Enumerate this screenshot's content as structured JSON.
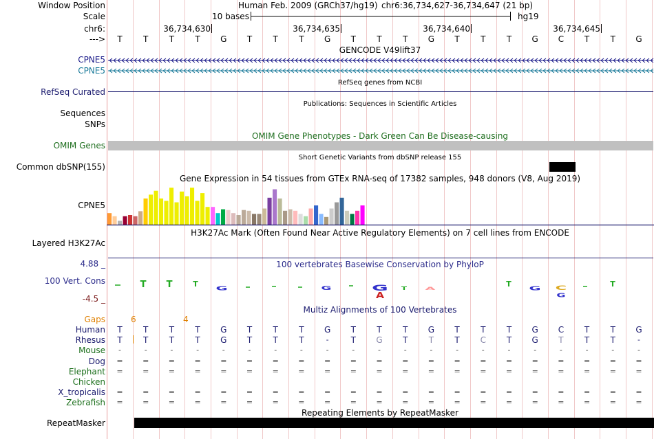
{
  "header": {
    "window_position_label": "Window Position",
    "assembly_text": "Human Feb. 2009 (GRCh37/hg19)",
    "position_text": "chr6:36,734,627-36,734,647 (21 bp)",
    "scale_label": "Scale",
    "scale_text": "10 bases",
    "scale_assembly": "hg19",
    "chrom_label": "chr6:",
    "arrow_label": "--->",
    "coordinates": [
      "36,734,630",
      "36,734,635",
      "36,734,640",
      "36,734,645"
    ],
    "bases": [
      "T",
      "T",
      "T",
      "T",
      "G",
      "T",
      "T",
      "T",
      "G",
      "T",
      "T",
      "T",
      "G",
      "T",
      "T",
      "T",
      "G",
      "C",
      "T",
      "T",
      "G"
    ]
  },
  "tracks": {
    "gencode": {
      "title": "GENCODE V49lift37",
      "genes": [
        {
          "label": "CPNE5",
          "color": "#1a1a8a"
        },
        {
          "label": "CPNE5",
          "color": "#1a7a9a"
        }
      ]
    },
    "refseq": {
      "label": "RefSeq Curated",
      "title": "RefSeq genes from NCBI"
    },
    "publications": {
      "title": "Publications: Sequences in Scientific Articles",
      "label": "Sequences"
    },
    "snps": {
      "label": "SNPs"
    },
    "omim": {
      "label": "OMIM Genes",
      "title": "OMIM Gene Phenotypes - Dark Green Can Be Disease-causing"
    },
    "dbsnp": {
      "label": "Common dbSNP(155)",
      "title": "Short Genetic Variants from dbSNP release 155"
    },
    "gtex": {
      "label": "CPNE5",
      "title": "Gene Expression in 54 tissues from GTEx RNA-seq of 17382 samples, 948 donors (V8, Aug 2019)",
      "colors": [
        "#ff9a33",
        "#ffcc99",
        "#b3b3b3",
        "#990033",
        "#cc3333",
        "#cc6666",
        "#ccaa88",
        "#ffcc00",
        "#eeee00",
        "#eeee00",
        "#eeee00",
        "#eeee00",
        "#eeee00",
        "#eeee00",
        "#eeee00",
        "#eeee00",
        "#eeee00",
        "#eeee00",
        "#eeee00",
        "#eeee00",
        "#ff66ff",
        "#00cccc",
        "#00aa44",
        "#eecccc",
        "#ddbbbb",
        "#bbaa99",
        "#bbaa99",
        "#ccbbaa",
        "#887766",
        "#998877",
        "#ccbb99",
        "#7a3fa0",
        "#aa77cc",
        "#bbbb99",
        "#aa9988",
        "#ccbbaa",
        "#ffbbbb",
        "#dddddd",
        "#aaddaa",
        "#ffaaaa",
        "#3366cc",
        "#88bbff",
        "#aa9977",
        "#cccccc",
        "#999999",
        "#336699",
        "#ccccbb",
        "#007744",
        "#ff33aa",
        "#ff00ff"
      ],
      "values": [
        0.3,
        0.22,
        0.1,
        0.22,
        0.25,
        0.22,
        0.35,
        0.68,
        0.78,
        0.88,
        0.68,
        0.62,
        0.96,
        0.58,
        0.86,
        0.74,
        0.96,
        0.62,
        0.82,
        0.46,
        0.46,
        0.3,
        0.4,
        0.38,
        0.3,
        0.25,
        0.38,
        0.36,
        0.28,
        0.28,
        0.42,
        0.7,
        0.92,
        0.68,
        0.36,
        0.4,
        0.36,
        0.28,
        0.22,
        0.42,
        0.5,
        0.28,
        0.2,
        0.42,
        0.58,
        0.7,
        0.36,
        0.28,
        0.36,
        0.5
      ]
    },
    "h3k27ac": {
      "label": "Layered H3K27Ac",
      "title": "H3K27Ac Mark (Often Found Near Active Regulatory Elements) on 7 cell lines from ENCODE"
    },
    "phylop": {
      "label": "100 Vert. Cons",
      "title": "100 vertebrates Basewise Conservation by PhyloP",
      "ymax": "4.88 _",
      "ymin": "-4.5 _"
    },
    "multiz": {
      "title": "Multiz Alignments of 100 Vertebrates",
      "gaps_label": "Gaps",
      "gap_counts": [
        "6",
        "4"
      ],
      "species": [
        {
          "name": "Human",
          "color": "#1a1a6e",
          "row": [
            "T",
            "T",
            "T",
            "T",
            "G",
            "T",
            "T",
            "T",
            "G",
            "T",
            "T",
            "T",
            "G",
            "T",
            "T",
            "T",
            "G",
            "C",
            "T",
            "T",
            "G"
          ]
        },
        {
          "name": "Rhesus",
          "color": "#1a1a6e",
          "row": [
            "T",
            "T",
            "T",
            "T",
            "G",
            "T",
            "T",
            "T",
            "-",
            "T",
            "G",
            "T",
            "T",
            "T",
            "C",
            "T",
            "G",
            "T",
            "T",
            "T",
            "-"
          ]
        },
        {
          "name": "Mouse",
          "color": "#1a6e1a",
          "row": [
            "-",
            "-",
            "-",
            "-",
            "-",
            "-",
            "-",
            "-",
            "-",
            "-",
            "-",
            "-",
            "-",
            "-",
            "-",
            "-",
            "-",
            "-",
            "-",
            "-",
            "-"
          ]
        },
        {
          "name": "Dog",
          "color": "#1a1a6e",
          "row": [
            "=",
            "=",
            "=",
            "=",
            "=",
            "=",
            "=",
            "=",
            "=",
            "=",
            "=",
            "=",
            "=",
            "=",
            "=",
            "=",
            "=",
            "=",
            "=",
            "=",
            "="
          ]
        },
        {
          "name": "Elephant",
          "color": "#1a6e1a",
          "row": [
            "=",
            "=",
            "=",
            "=",
            "=",
            "=",
            "=",
            "=",
            "=",
            "=",
            "=",
            "=",
            "=",
            "=",
            "=",
            "=",
            "=",
            "=",
            "=",
            "=",
            "="
          ]
        },
        {
          "name": "Chicken",
          "color": "#1a6e1a",
          "row": [
            "",
            "",
            "",
            "",
            "",
            "",
            "",
            "",
            "",
            "",
            "",
            "",
            "",
            "",
            "",
            "",
            "",
            "",
            "",
            "",
            ""
          ]
        },
        {
          "name": "X_tropicalis",
          "color": "#1a1a6e",
          "row": [
            "=",
            "=",
            "=",
            "=",
            "=",
            "=",
            "=",
            "=",
            "=",
            "=",
            "=",
            "=",
            "=",
            "=",
            "=",
            "=",
            "=",
            "=",
            "=",
            "=",
            "="
          ]
        },
        {
          "name": "Zebrafish",
          "color": "#1a6e1a",
          "row": [
            "=",
            "=",
            "=",
            "=",
            "=",
            "=",
            "=",
            "=",
            "=",
            "=",
            "=",
            "=",
            "=",
            "=",
            "=",
            "=",
            "=",
            "=",
            "=",
            "=",
            "="
          ]
        }
      ]
    },
    "repeatmasker": {
      "label": "RepeatMasker",
      "title": "Repeating Elements by RepeatMasker"
    }
  }
}
